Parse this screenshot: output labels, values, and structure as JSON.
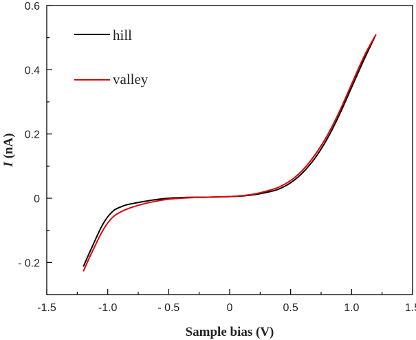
{
  "chart_data": {
    "type": "line",
    "title": "",
    "xlabel": "Sample bias (V)",
    "ylabel_italic": "I",
    "ylabel_rest": " (nA)",
    "xlim": [
      -1.5,
      1.5
    ],
    "ylim": [
      -0.3,
      0.6
    ],
    "x_ticks": [
      -1.5,
      -1.0,
      -0.5,
      0,
      0.5,
      1.0,
      1.5
    ],
    "x_tick_labels": [
      "-1.5",
      "-1.0",
      "- 0.5",
      "0",
      "0.5",
      "1.0",
      "1.5"
    ],
    "y_ticks": [
      -0.2,
      0,
      0.2,
      0.4,
      0.6
    ],
    "y_tick_labels": [
      "- 0.2",
      "0",
      "0.2",
      "0.4",
      "0.6"
    ],
    "grid": false,
    "legend_position": "top-left",
    "series": [
      {
        "name": "hill",
        "color": "#000000",
        "x": [
          -1.2,
          -1.15,
          -1.1,
          -1.05,
          -1.0,
          -0.95,
          -0.9,
          -0.85,
          -0.8,
          -0.7,
          -0.6,
          -0.5,
          -0.4,
          -0.3,
          -0.2,
          -0.1,
          0.0,
          0.1,
          0.2,
          0.3,
          0.4,
          0.5,
          0.6,
          0.7,
          0.8,
          0.9,
          1.0,
          1.1,
          1.2
        ],
        "y": [
          -0.213,
          -0.17,
          -0.128,
          -0.088,
          -0.058,
          -0.038,
          -0.028,
          -0.021,
          -0.017,
          -0.01,
          -0.004,
          0.0,
          0.002,
          0.003,
          0.003,
          0.004,
          0.005,
          0.007,
          0.011,
          0.018,
          0.028,
          0.048,
          0.08,
          0.125,
          0.185,
          0.26,
          0.345,
          0.43,
          0.51
        ]
      },
      {
        "name": "valley",
        "color": "#e00000",
        "x": [
          -1.2,
          -1.15,
          -1.1,
          -1.05,
          -1.0,
          -0.95,
          -0.9,
          -0.85,
          -0.8,
          -0.7,
          -0.6,
          -0.5,
          -0.4,
          -0.3,
          -0.2,
          -0.1,
          0.0,
          0.1,
          0.2,
          0.3,
          0.4,
          0.5,
          0.6,
          0.7,
          0.8,
          0.9,
          1.0,
          1.1,
          1.2
        ],
        "y": [
          -0.228,
          -0.185,
          -0.145,
          -0.107,
          -0.077,
          -0.056,
          -0.044,
          -0.035,
          -0.028,
          -0.017,
          -0.009,
          -0.003,
          0.0,
          0.002,
          0.003,
          0.004,
          0.005,
          0.008,
          0.013,
          0.022,
          0.034,
          0.055,
          0.088,
          0.135,
          0.195,
          0.27,
          0.355,
          0.44,
          0.51
        ]
      }
    ]
  }
}
